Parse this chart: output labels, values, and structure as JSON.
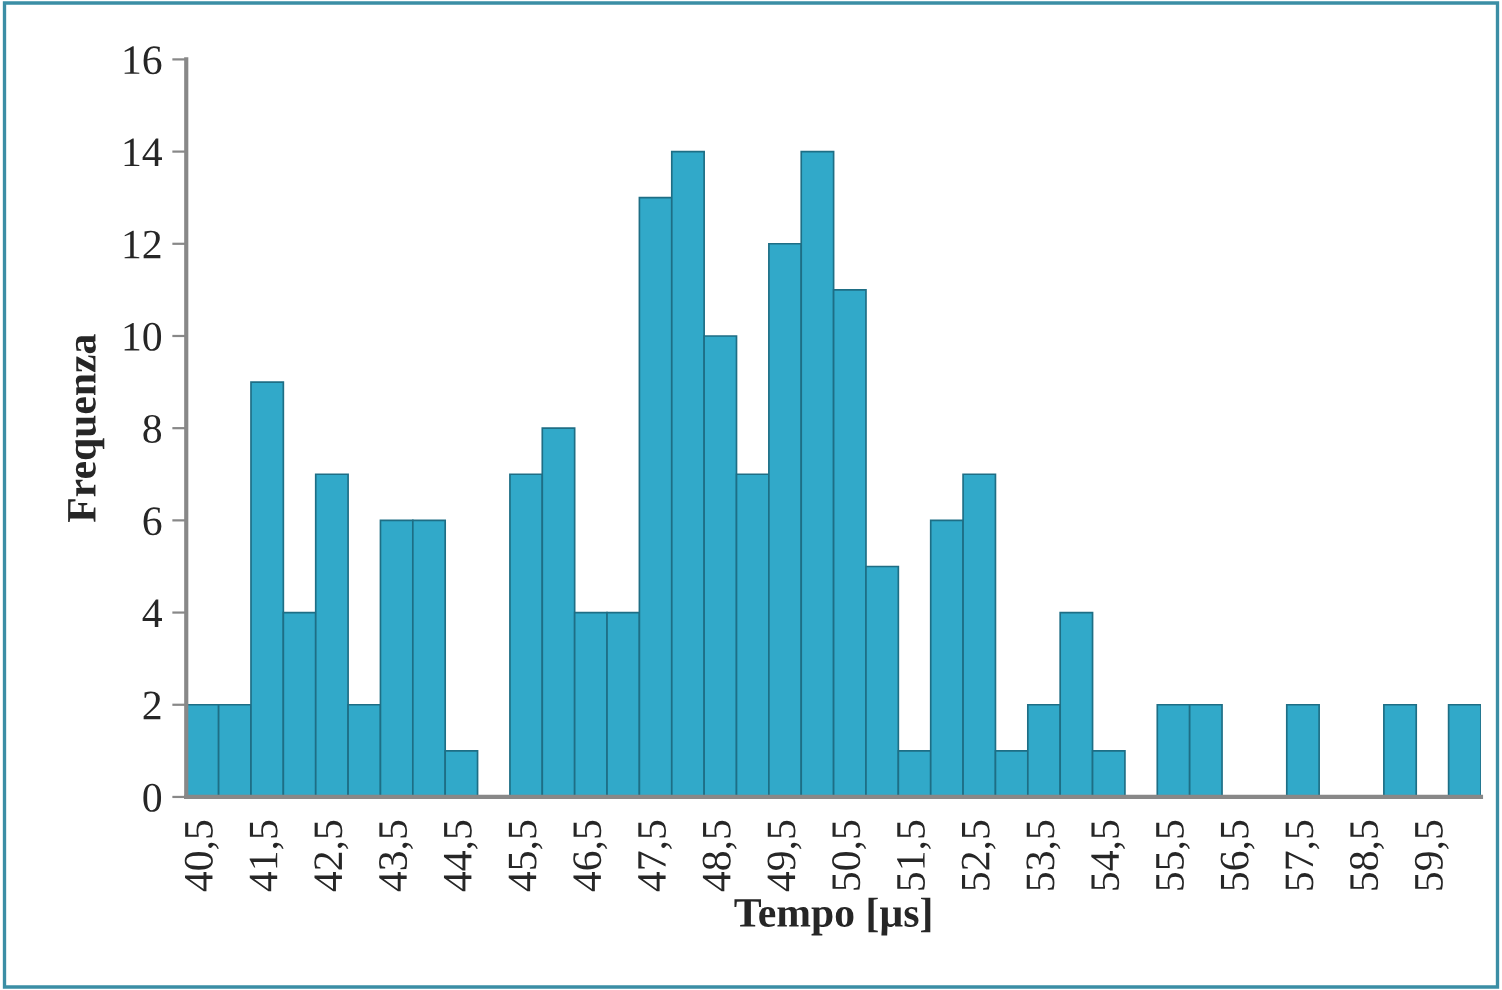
{
  "chart_data": {
    "type": "bar",
    "xlabel": "Tempo [µs]",
    "ylabel": "Frequenza",
    "categories": [
      "40,5",
      null,
      "41,5",
      null,
      "42,5",
      null,
      "43,5",
      null,
      "44,5",
      null,
      "45,5",
      null,
      "46,5",
      null,
      "47,5",
      null,
      "48,5",
      null,
      "49,5",
      null,
      "50,5",
      null,
      "51,5",
      null,
      "52,5",
      null,
      "53,5",
      null,
      "54,5",
      null,
      "55,5",
      null,
      "56,5",
      null,
      "57,5",
      null,
      "58,5",
      null,
      "59,5",
      null
    ],
    "values": [
      2,
      2,
      9,
      4,
      7,
      2,
      6,
      6,
      1,
      0,
      7,
      8,
      4,
      4,
      13,
      14,
      10,
      7,
      12,
      14,
      11,
      5,
      1,
      6,
      7,
      1,
      2,
      4,
      1,
      0,
      2,
      2,
      0,
      0,
      2,
      0,
      0,
      2,
      0,
      2
    ],
    "color": "#31a9c9",
    "ylim": [
      0,
      16
    ],
    "yticks": [
      0,
      2,
      4,
      6,
      8,
      10,
      12,
      14,
      16
    ],
    "grid": false,
    "legend": false
  }
}
